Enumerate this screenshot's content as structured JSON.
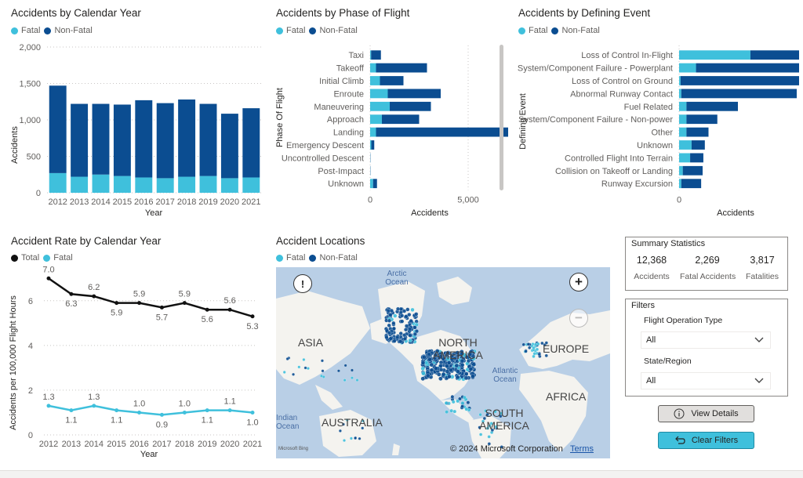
{
  "colors": {
    "fatal": "#3fc0dc",
    "nonfatal": "#0b4d91",
    "total": "#111111",
    "map_land": "#f4f3ef",
    "map_water": "#b9cfe6"
  },
  "year_chart": {
    "title": "Accidents by Calendar Year",
    "legend": [
      "Fatal",
      "Non-Fatal"
    ],
    "ylabel": "Accidents",
    "xlabel": "Year",
    "yticks": [
      "2,000",
      "1,500",
      "1,000",
      "500",
      "0"
    ]
  },
  "phase_chart": {
    "title": "Accidents by Phase of Flight",
    "legend": [
      "Fatal",
      "Non-Fatal"
    ],
    "ylabel": "Phase Of Flight",
    "xlabel": "Accidents",
    "xticks": [
      "0",
      "5,000"
    ]
  },
  "event_chart": {
    "title": "Accidents by Defining Event",
    "legend": [
      "Fatal",
      "Non-Fatal"
    ],
    "ylabel": "Defining Event",
    "xlabel": "Accidents",
    "xticks": [
      "0",
      "2,000"
    ]
  },
  "rate_chart": {
    "title": "Accident Rate by Calendar Year",
    "legend": [
      "Total",
      "Fatal"
    ],
    "ylabel": "Accidents per 100,000 Flight Hours",
    "xlabel": "Year",
    "yticks": [
      "6",
      "4",
      "2",
      "0"
    ]
  },
  "map": {
    "title": "Accident Locations",
    "legend": [
      "Fatal",
      "Non-Fatal"
    ],
    "labels": {
      "arctic": "Arctic Ocean",
      "asia": "ASIA",
      "north_america": "NORTH AMERICA",
      "europe": "EUROPE",
      "atlantic": "Atlantic Ocean",
      "africa": "AFRICA",
      "indian": "Indian Ocean",
      "australia": "AUSTRALIA",
      "south_america": "SOUTH AMERICA"
    },
    "copyright": "© 2024 Microsoft Corporation",
    "terms": "Terms",
    "logo": "Microsoft Bing",
    "info_button": "!",
    "zoom_in": "+",
    "zoom_out": "−"
  },
  "summary": {
    "title": "Summary Statistics",
    "stats": [
      {
        "value": "12,368",
        "label": "Accidents"
      },
      {
        "value": "2,269",
        "label": "Fatal Accidents"
      },
      {
        "value": "3,817",
        "label": "Fatalities"
      }
    ]
  },
  "filters": {
    "title": "Filters",
    "flight_op_label": "Flight Operation Type",
    "flight_op_value": "All",
    "state_label": "State/Region",
    "state_value": "All"
  },
  "buttons": {
    "view_details": "View Details",
    "clear_filters": "Clear Filters"
  },
  "chart_data": [
    {
      "type": "bar",
      "stacked": true,
      "title": "Accidents by Calendar Year",
      "xlabel": "Year",
      "ylabel": "Accidents",
      "ylim": [
        0,
        2000
      ],
      "categories": [
        "2012",
        "2013",
        "2014",
        "2015",
        "2016",
        "2017",
        "2018",
        "2019",
        "2020",
        "2021"
      ],
      "series": [
        {
          "name": "Fatal",
          "values": [
            270,
            220,
            250,
            230,
            210,
            200,
            220,
            230,
            200,
            210
          ]
        },
        {
          "name": "Non-Fatal",
          "values": [
            1200,
            1000,
            970,
            980,
            1060,
            1030,
            1060,
            990,
            885,
            950
          ]
        }
      ],
      "legend": "top-left"
    },
    {
      "type": "bar",
      "orientation": "horizontal",
      "stacked": true,
      "title": "Accidents by Phase of Flight",
      "xlabel": "Accidents",
      "ylabel": "Phase Of Flight",
      "xlim": [
        0,
        10000
      ],
      "categories": [
        "Taxi",
        "Takeoff",
        "Initial Climb",
        "Enroute",
        "Maneuvering",
        "Approach",
        "Landing",
        "Emergency Descent",
        "Uncontrolled Descent",
        "Post-Impact",
        "Unknown"
      ],
      "series": [
        {
          "name": "Fatal",
          "values": [
            50,
            300,
            500,
            900,
            1000,
            600,
            300,
            60,
            10,
            10,
            150
          ]
        },
        {
          "name": "Non-Fatal",
          "values": [
            500,
            2600,
            1200,
            2700,
            2100,
            1900,
            7700,
            150,
            10,
            10,
            200
          ]
        }
      ],
      "legend": "top-left"
    },
    {
      "type": "bar",
      "orientation": "horizontal",
      "stacked": true,
      "title": "Accidents by Defining Event",
      "xlabel": "Accidents",
      "ylabel": "Defining Event",
      "xlim": [
        0,
        3200
      ],
      "categories": [
        "Loss of Control In-Flight",
        "System/Component Failure - Powerplant",
        "Loss of Control on Ground",
        "Abnormal Runway Contact",
        "Fuel Related",
        "System/Component Failure - Non-power",
        "Other",
        "Unknown",
        "Controlled Flight Into Terrain",
        "Collision on Takeoff or Landing",
        "Runway Excursion"
      ],
      "series": [
        {
          "name": "Fatal",
          "values": [
            970,
            230,
            20,
            30,
            100,
            100,
            100,
            170,
            150,
            50,
            30
          ]
        },
        {
          "name": "Non-Fatal",
          "values": [
            1250,
            1770,
            2000,
            1570,
            700,
            420,
            300,
            180,
            180,
            270,
            270
          ]
        }
      ],
      "legend": "top-left"
    },
    {
      "type": "line",
      "title": "Accident Rate by Calendar Year",
      "xlabel": "Year",
      "ylabel": "Accidents per 100,000 Flight Hours",
      "ylim": [
        0,
        7.5
      ],
      "x": [
        "2012",
        "2013",
        "2014",
        "2015",
        "2016",
        "2017",
        "2018",
        "2019",
        "2020",
        "2021"
      ],
      "series": [
        {
          "name": "Total",
          "values": [
            7.0,
            6.3,
            6.2,
            5.9,
            5.9,
            5.7,
            5.9,
            5.6,
            5.6,
            5.3
          ]
        },
        {
          "name": "Fatal",
          "values": [
            1.3,
            1.1,
            1.3,
            1.1,
            1.0,
            0.9,
            1.0,
            1.1,
            1.1,
            1.0
          ]
        }
      ],
      "legend": "top-left"
    }
  ]
}
